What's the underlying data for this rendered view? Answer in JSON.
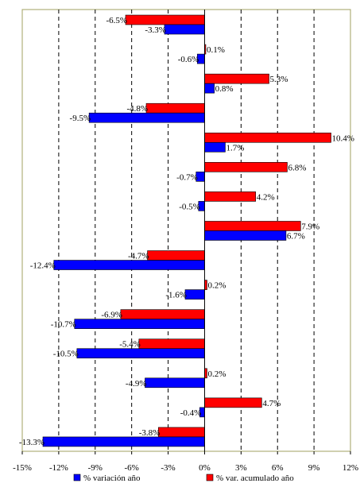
{
  "chart_data": {
    "type": "bar",
    "orientation": "horizontal",
    "xlim": [
      -15,
      12
    ],
    "x_ticks": [
      -15,
      -12,
      -9,
      -6,
      -3,
      0,
      3,
      6,
      9,
      12
    ],
    "tick_suffix": "%",
    "grid": "vertical dashed",
    "legend_position": "bottom",
    "series": [
      {
        "name": "% var. acumulado año",
        "color": "#ff0000",
        "values": [
          -6.5,
          0.1,
          5.3,
          -4.8,
          10.4,
          6.8,
          4.2,
          7.9,
          -4.7,
          0.2,
          -6.9,
          -5.4,
          0.2,
          4.7,
          -3.8
        ],
        "labels": [
          "-6.5%",
          "0.1%",
          "5.3%",
          "-4.8%",
          "10.4%",
          "6.8%",
          "4.2%",
          "7.9%",
          "-4.7%",
          "0.2%",
          "-6.9%",
          "-5.4%",
          "0.2%",
          "4.7%",
          "-3.8%"
        ]
      },
      {
        "name": "% variación año",
        "color": "#0000ff",
        "values": [
          -3.3,
          -0.6,
          0.8,
          -9.5,
          1.7,
          -0.7,
          -0.5,
          6.7,
          -12.4,
          -1.6,
          -10.7,
          -10.5,
          -4.9,
          -0.4,
          -13.3
        ],
        "labels": [
          "-3.3%",
          "-0.6%",
          "0.8%",
          "-9.5%",
          "1.7%",
          "-0.7%",
          "-0.5%",
          "6.7%",
          "-12.4%",
          "-1.6%",
          "-10.7%",
          "-10.5%",
          "-4.9%",
          "-0.4%",
          "-13.3%"
        ]
      }
    ],
    "legend": [
      {
        "label": "% variación año",
        "color": "#0000ff"
      },
      {
        "label": "% var. acumulado año",
        "color": "#ff0000"
      }
    ]
  }
}
